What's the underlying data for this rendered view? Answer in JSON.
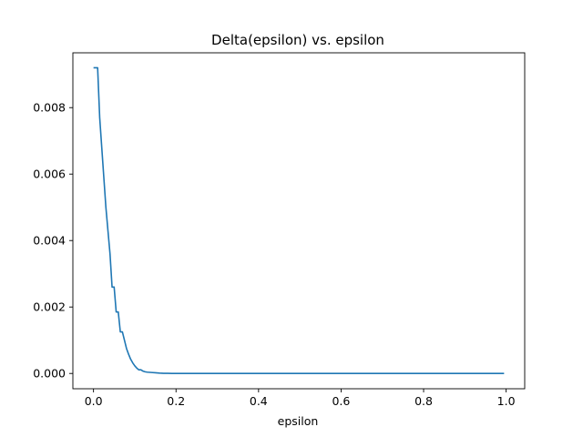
{
  "chart_data": {
    "type": "line",
    "title": "Delta(epsilon) vs. epsilon",
    "xlabel": "epsilon",
    "ylabel": "",
    "xlim": [
      -0.05,
      1.045
    ],
    "ylim": [
      -0.00046,
      0.00965
    ],
    "x_ticks": [
      {
        "value": 0.0,
        "label": "0.0"
      },
      {
        "value": 0.2,
        "label": "0.2"
      },
      {
        "value": 0.4,
        "label": "0.4"
      },
      {
        "value": 0.6,
        "label": "0.6"
      },
      {
        "value": 0.8,
        "label": "0.8"
      },
      {
        "value": 1.0,
        "label": "1.0"
      }
    ],
    "y_ticks": [
      {
        "value": 0.0,
        "label": "0.000"
      },
      {
        "value": 0.002,
        "label": "0.002"
      },
      {
        "value": 0.004,
        "label": "0.004"
      },
      {
        "value": 0.006,
        "label": "0.006"
      },
      {
        "value": 0.008,
        "label": "0.008"
      }
    ],
    "grid": false,
    "legend": "none",
    "color": "#1f77b4",
    "series": [
      {
        "x": [
          0.0,
          0.01,
          0.015,
          0.02,
          0.025,
          0.03,
          0.035,
          0.04,
          0.045,
          0.05,
          0.055,
          0.06,
          0.065,
          0.07,
          0.075,
          0.08,
          0.085,
          0.09,
          0.095,
          0.1,
          0.105,
          0.11,
          0.115,
          0.12,
          0.125,
          0.13,
          0.14,
          0.15,
          0.16,
          0.17,
          0.18,
          0.19,
          0.2,
          0.25,
          0.3,
          0.4,
          0.5,
          0.6,
          0.7,
          0.8,
          0.9,
          0.995
        ],
        "y": [
          0.0092,
          0.0092,
          0.0077,
          0.0068,
          0.0059,
          0.005,
          0.0043,
          0.0036,
          0.0026,
          0.0026,
          0.00185,
          0.00185,
          0.00125,
          0.00125,
          0.001,
          0.00075,
          0.00058,
          0.00043,
          0.00032,
          0.00023,
          0.00016,
          0.00011,
          0.00011,
          7e-05,
          5e-05,
          4e-05,
          3e-05,
          2e-05,
          1e-05,
          5e-06,
          3e-06,
          2e-06,
          1e-06,
          0.0,
          0.0,
          0.0,
          0.0,
          0.0,
          0.0,
          0.0,
          0.0,
          0.0
        ]
      }
    ]
  }
}
